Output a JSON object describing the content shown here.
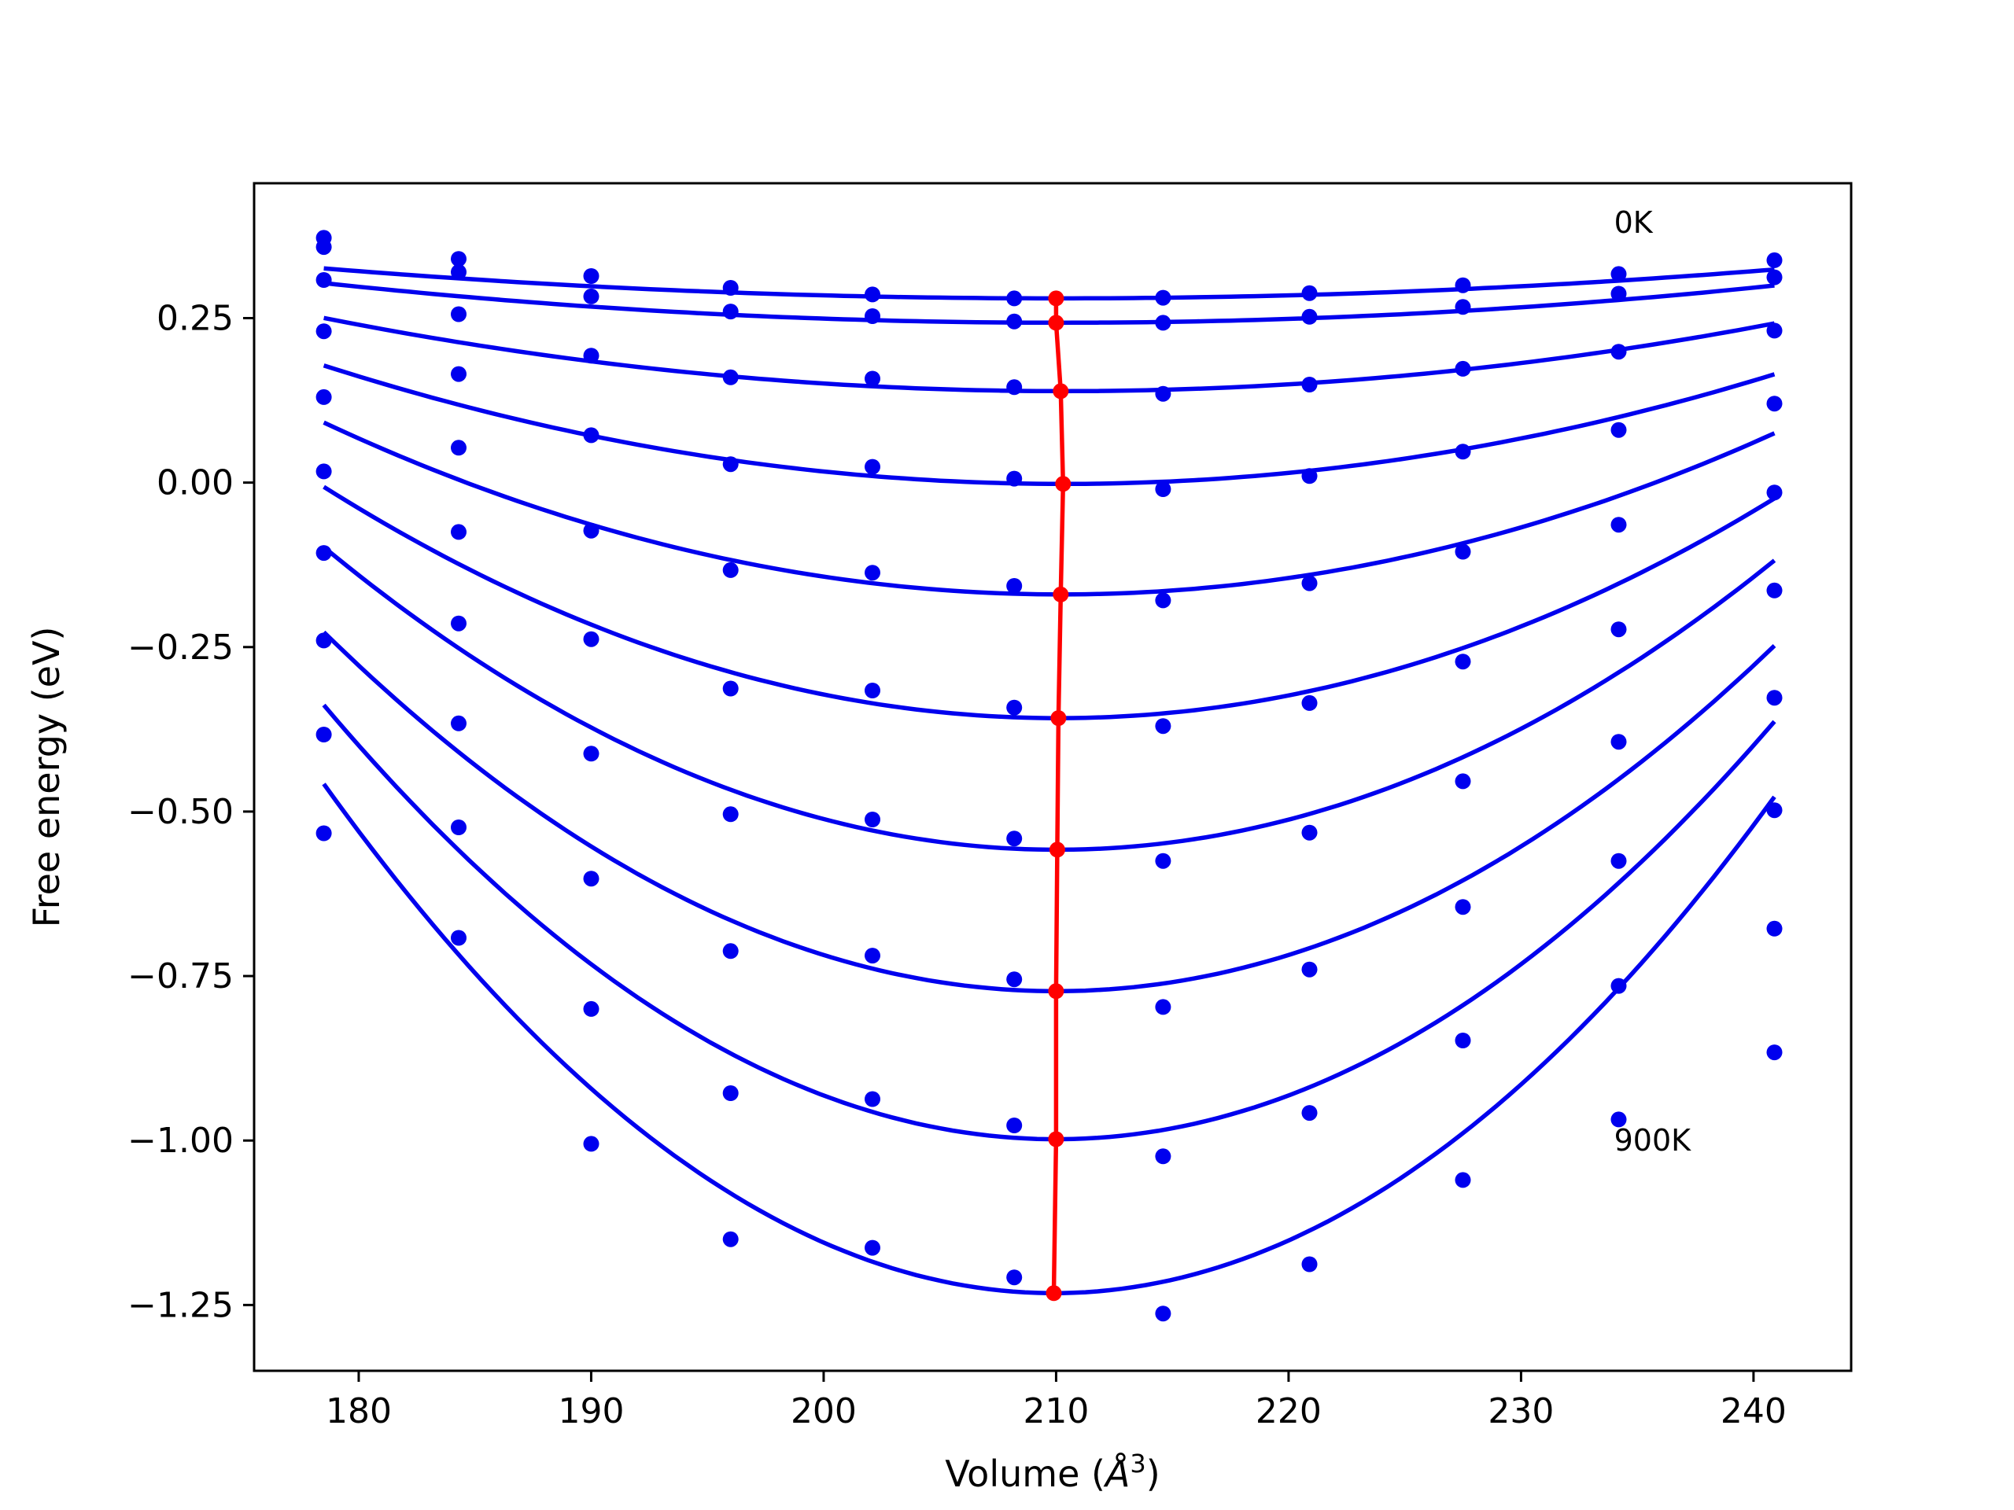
{
  "chart_data": {
    "type": "scatter",
    "title": "",
    "xlabel": "Volume (",
    "xlabel_symbol": "Å",
    "xlabel_sup": "3",
    "xlabel_close": ")",
    "ylabel": "Free energy (eV)",
    "xlim": [
      175.5,
      244.2
    ],
    "ylim": [
      -1.35,
      0.455
    ],
    "xticks": [
      180,
      190,
      200,
      210,
      220,
      230,
      240
    ],
    "xtick_labels": [
      "180",
      "190",
      "200",
      "210",
      "220",
      "230",
      "240"
    ],
    "yticks": [
      -1.25,
      -1.0,
      -0.75,
      -0.5,
      -0.25,
      0.0,
      0.25
    ],
    "ytick_labels": [
      "−1.25",
      "−1.00",
      "−0.75",
      "−0.50",
      "−0.25",
      "0.00",
      "0.25"
    ],
    "grid": false,
    "annotations": [
      {
        "text": "0K",
        "x": 234.0,
        "y": 0.395
      },
      {
        "text": "900K",
        "x": 234.0,
        "y": -1.0
      }
    ],
    "colors": {
      "data": "#0000ee",
      "minimum": "#ff0000"
    },
    "volumes": [
      178.5,
      184.3,
      190.0,
      196.0,
      202.1,
      208.2,
      214.6,
      220.9,
      227.5,
      234.2,
      240.9
    ],
    "series": [
      {
        "values": [
          0.372,
          0.34,
          0.314,
          0.296,
          0.286,
          0.28,
          0.281,
          0.288,
          0.3,
          0.317,
          0.338
        ],
        "fit": {
          "a": 4.6e-05,
          "v0": 210.0,
          "e0": 0.28
        }
      },
      {
        "values": [
          0.358,
          0.32,
          0.283,
          0.26,
          0.253,
          0.245,
          0.243,
          0.252,
          0.267,
          0.287,
          0.312
        ],
        "fit": {
          "a": 6e-05,
          "v0": 210.2,
          "e0": 0.243
        }
      },
      {
        "values": [
          0.308,
          0.256,
          0.193,
          0.16,
          0.158,
          0.145,
          0.135,
          0.149,
          0.173,
          0.199,
          0.231
        ],
        "fit": {
          "a": 0.00011,
          "v0": 210.3,
          "e0": 0.139
        }
      },
      {
        "values": [
          0.23,
          0.165,
          0.072,
          0.028,
          0.024,
          0.006,
          -0.01,
          0.01,
          0.047,
          0.08,
          0.12
        ],
        "fit": {
          "a": 0.000178,
          "v0": 210.3,
          "e0": -0.002
        }
      },
      {
        "values": [
          0.13,
          0.053,
          -0.073,
          -0.133,
          -0.137,
          -0.157,
          -0.179,
          -0.153,
          -0.105,
          -0.064,
          -0.015
        ],
        "fit": {
          "a": 0.00026,
          "v0": 210.2,
          "e0": -0.17
        }
      },
      {
        "values": [
          0.017,
          -0.075,
          -0.238,
          -0.313,
          -0.316,
          -0.342,
          -0.37,
          -0.335,
          -0.272,
          -0.223,
          -0.164
        ],
        "fit": {
          "a": 0.000352,
          "v0": 210.1,
          "e0": -0.358
        }
      },
      {
        "values": [
          -0.107,
          -0.214,
          -0.412,
          -0.504,
          -0.512,
          -0.541,
          -0.575,
          -0.532,
          -0.454,
          -0.394,
          -0.327
        ],
        "fit": {
          "a": 0.000462,
          "v0": 210.05,
          "e0": -0.558
        }
      },
      {
        "values": [
          -0.24,
          -0.366,
          -0.602,
          -0.712,
          -0.719,
          -0.755,
          -0.797,
          -0.74,
          -0.645,
          -0.575,
          -0.498
        ],
        "fit": {
          "a": 0.00055,
          "v0": 210.0,
          "e0": -0.773
        }
      },
      {
        "values": [
          -0.383,
          -0.524,
          -0.8,
          -0.928,
          -0.937,
          -0.977,
          -1.024,
          -0.958,
          -0.848,
          -0.765,
          -0.678
        ],
        "fit": {
          "a": 0.000665,
          "v0": 210.0,
          "e0": -0.998
        }
      },
      {
        "values": [
          -0.533,
          -0.692,
          -1.005,
          -1.15,
          -1.163,
          -1.208,
          -1.263,
          -1.188,
          -1.06,
          -0.968,
          -0.866
        ],
        "fit": {
          "a": 0.000785,
          "v0": 209.9,
          "e0": -1.232
        }
      }
    ],
    "minimum_line": {
      "x": [
        210.0,
        210.0,
        210.2,
        210.3,
        210.2,
        210.1,
        210.05,
        210.0,
        210.0,
        209.9
      ],
      "y": [
        0.28,
        0.243,
        0.139,
        -0.002,
        -0.17,
        -0.358,
        -0.558,
        -0.773,
        -0.998,
        -1.232
      ]
    }
  }
}
